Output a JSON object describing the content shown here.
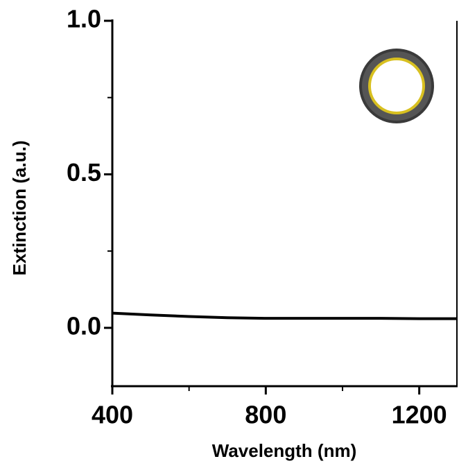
{
  "chart_data": {
    "type": "line",
    "x_label": "Wavelength (nm)",
    "y_label": "Extinction (a.u.)",
    "x": [
      400,
      500,
      600,
      700,
      800,
      900,
      1000,
      1100,
      1200,
      1300
    ],
    "series": [
      {
        "color": "#000000",
        "values": [
          0.048,
          0.042,
          0.037,
          0.033,
          0.031,
          0.031,
          0.031,
          0.031,
          0.03,
          0.03
        ]
      }
    ],
    "xlim": [
      400,
      1300
    ],
    "ylim": [
      -0.19,
      1.0
    ],
    "xticks": [
      400,
      800,
      1200
    ],
    "yticks": [
      {
        "value": 0,
        "label": "0.0"
      },
      0.5,
      {
        "value": 1,
        "label": "1.0"
      }
    ],
    "xminorticks": [
      600,
      1000
    ],
    "yminorticks": [
      0.25,
      0.75
    ],
    "grid": false
  }
}
